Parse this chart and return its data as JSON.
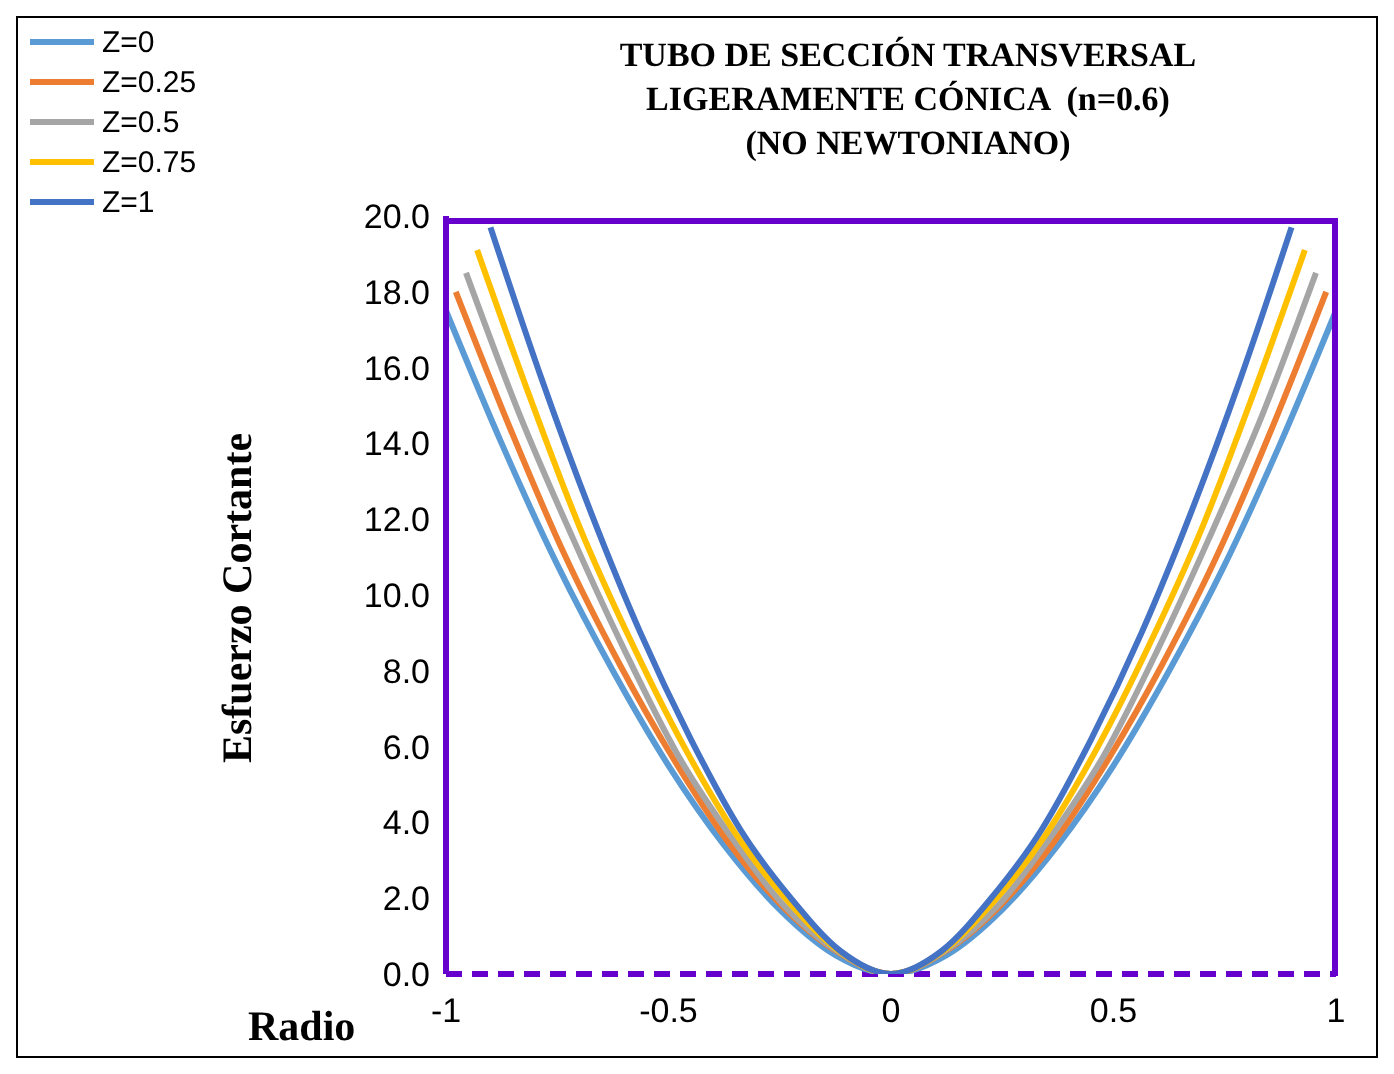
{
  "chart_data": {
    "type": "line",
    "title": "TUBO DE SECCIÓN TRANSVERSAL\nLIGERAMENTE CÓNICA  (n=0.6)\n(NO NEWTONIANO)",
    "xlabel": "Radio",
    "ylabel": "Esfuerzo Cortante",
    "series": [
      {
        "name": "Z=0",
        "color": "#5b9bd5",
        "x": [
          -1,
          -0.875,
          -0.75,
          -0.625,
          -0.5,
          -0.375,
          -0.25,
          -0.125,
          0,
          0.125,
          0.25,
          0.375,
          0.5,
          0.625,
          0.75,
          0.875,
          1
        ],
        "values": [
          17.5,
          14.0,
          10.8,
          8.0,
          5.5,
          3.4,
          1.7,
          0.5,
          0,
          0.5,
          1.7,
          3.4,
          5.5,
          8.0,
          10.8,
          14.0,
          17.5
        ]
      },
      {
        "name": "Z=0.25",
        "color": "#ed7d31",
        "x": [
          -0.978,
          -0.856,
          -0.735,
          -0.611,
          -0.49,
          -0.367,
          -0.245,
          -0.122,
          0,
          0.122,
          0.245,
          0.367,
          0.49,
          0.611,
          0.735,
          0.856,
          0.978
        ],
        "values": [
          18.0,
          14.4,
          11.1,
          8.2,
          5.7,
          3.5,
          1.8,
          0.6,
          0,
          0.6,
          1.8,
          3.5,
          5.7,
          8.2,
          11.1,
          14.4,
          18.0
        ]
      },
      {
        "name": "Z=0.5",
        "color": "#a5a5a5",
        "x": [
          -0.955,
          -0.836,
          -0.715,
          -0.597,
          -0.48,
          -0.358,
          -0.24,
          -0.12,
          0,
          0.12,
          0.24,
          0.358,
          0.48,
          0.597,
          0.715,
          0.836,
          0.955
        ],
        "values": [
          18.5,
          14.8,
          11.5,
          8.5,
          5.8,
          3.6,
          1.8,
          0.6,
          0,
          0.6,
          1.8,
          3.6,
          5.8,
          8.5,
          11.5,
          14.8,
          18.5
        ]
      },
      {
        "name": "Z=0.75",
        "color": "#ffc000",
        "x": [
          -0.93,
          -0.814,
          -0.7,
          -0.581,
          -0.465,
          -0.349,
          -0.23,
          -0.116,
          0,
          0.116,
          0.23,
          0.349,
          0.465,
          0.581,
          0.7,
          0.814,
          0.93
        ],
        "values": [
          19.1,
          15.3,
          11.8,
          8.7,
          6.0,
          3.7,
          1.9,
          0.6,
          0,
          0.6,
          1.9,
          3.7,
          6.0,
          8.7,
          11.8,
          15.3,
          19.1
        ]
      },
      {
        "name": "Z=1",
        "color": "#4472c4",
        "x": [
          -0.9,
          -0.788,
          -0.675,
          -0.563,
          -0.45,
          -0.338,
          -0.225,
          -0.113,
          0,
          0.113,
          0.225,
          0.338,
          0.45,
          0.563,
          0.675,
          0.788,
          0.9
        ],
        "values": [
          19.7,
          15.8,
          12.2,
          9.0,
          6.2,
          3.8,
          2.0,
          0.6,
          0,
          0.6,
          2.0,
          3.8,
          6.2,
          9.0,
          12.2,
          15.8,
          19.7
        ]
      }
    ],
    "xlim": [
      -1,
      1
    ],
    "xticks": [
      -1,
      -0.5,
      0,
      0.5,
      1
    ],
    "ylim": [
      0,
      20
    ],
    "yticks": [
      {
        "value": 0,
        "label": "0.0"
      },
      {
        "value": 2,
        "label": "2.0"
      },
      {
        "value": 4,
        "label": "4.0"
      },
      {
        "value": 6,
        "label": "6.0"
      },
      {
        "value": 8,
        "label": "8.0"
      },
      {
        "value": 10,
        "label": "10.0"
      },
      {
        "value": 12,
        "label": "12.0"
      },
      {
        "value": 14,
        "label": "14.0"
      },
      {
        "value": 16,
        "label": "16.0"
      },
      {
        "value": 18,
        "label": "18.0"
      },
      {
        "value": 20,
        "label": "20.0"
      }
    ],
    "ref_lines": [
      {
        "axis": "y",
        "value": 0,
        "color": "#6600cc",
        "line_style": "dashed"
      }
    ],
    "grid": false,
    "legend": "top left",
    "marker": "none",
    "line_style": "solid"
  }
}
